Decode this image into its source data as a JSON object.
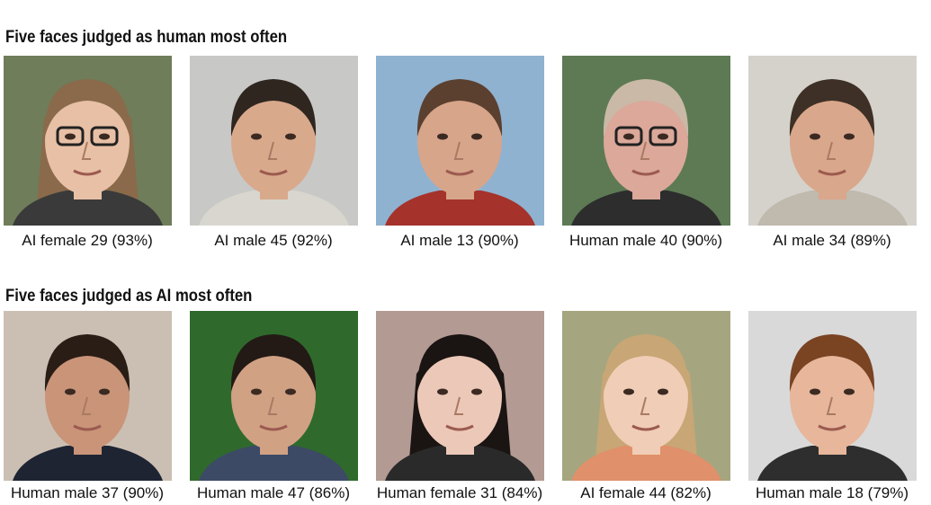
{
  "sections": [
    {
      "title": "Five faces judged as human most often",
      "faces": [
        "AI female 29 (93%)",
        "AI male 45 (92%)",
        "AI male 13 (90%)",
        "Human male 40 (90%)",
        "AI male 34 (89%)"
      ]
    },
    {
      "title": "Five faces judged as AI most often",
      "faces": [
        "Human male 37 (90%)",
        "Human male 47 (86%)",
        "Human female 31 (84%)",
        "AI female 44 (82%)",
        "Human male 18 (79%)"
      ]
    }
  ]
}
